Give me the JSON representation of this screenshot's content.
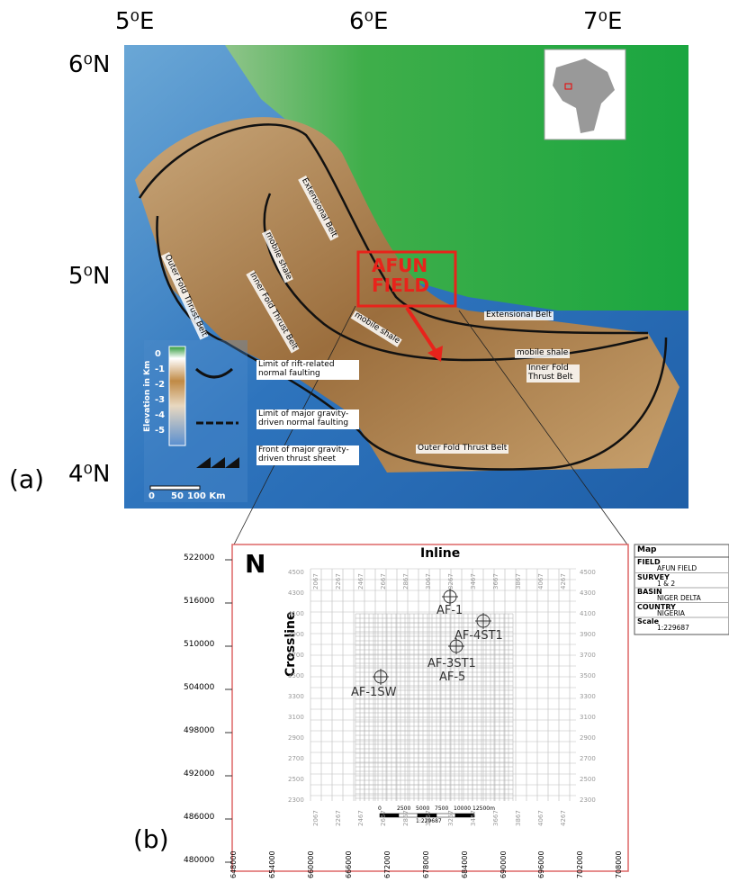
{
  "panel_a": {
    "label": "(a)",
    "lon_labels": [
      "5⁰E",
      "6⁰E",
      "7⁰E"
    ],
    "lat_labels": [
      "6⁰N",
      "5⁰N",
      "4⁰N"
    ],
    "map_labels": [
      "Extensional Belt",
      "mobile shale",
      "Outer Fold Thrust Belt",
      "Inner Fold Thrust Belt",
      "mobile shale",
      "Extensional Belt",
      "mobile shale",
      "Inner Fold Thrust Belt",
      "Outer Fold Thrust Belt"
    ],
    "field_label": "AFUN FIELD",
    "legend": {
      "title": "Elevation in Km",
      "ticks": [
        "0",
        "-1",
        "-2",
        "-3",
        "-4",
        "-5"
      ],
      "items": [
        "Limit of rift-related normal faulting",
        "Limit of major gravity-driven normal faulting",
        "Front of major gravity-driven thrust sheet"
      ],
      "scale": [
        "0",
        "50",
        "100 Km"
      ]
    }
  },
  "panel_b": {
    "label": "(b)",
    "north": "N",
    "inline_title": "Inline",
    "crossline_title": "Crossline",
    "northings": [
      522000,
      516000,
      510000,
      504000,
      498000,
      492000,
      486000,
      480000
    ],
    "eastings": [
      648000,
      654000,
      660000,
      666000,
      672000,
      678000,
      684000,
      690000,
      696000,
      702000,
      708000
    ],
    "inlines": [
      2067,
      2267,
      2467,
      2667,
      2867,
      3067,
      3267,
      3467,
      3667,
      3867,
      4067,
      4267
    ],
    "crosslines": [
      4500,
      4300,
      4100,
      3900,
      3700,
      3500,
      3300,
      3100,
      2900,
      2700,
      2500,
      2300
    ],
    "wells": [
      "AF-1",
      "AF-4ST1",
      "AF-3ST1",
      "AF-5",
      "AF-1SW"
    ],
    "scale_bar": [
      "0",
      "2500",
      "5000",
      "7500",
      "10000",
      "12500m"
    ],
    "scale_ratio": "1:229687",
    "info": {
      "title": "Map",
      "rows": [
        [
          "FIELD",
          "AFUN FIELD"
        ],
        [
          "SURVEY",
          "1 & 2"
        ],
        [
          "BASIN",
          "NIGER DELTA"
        ],
        [
          "COUNTRY",
          "NIGERIA"
        ],
        [
          "Scale",
          "1:229687"
        ]
      ]
    }
  }
}
